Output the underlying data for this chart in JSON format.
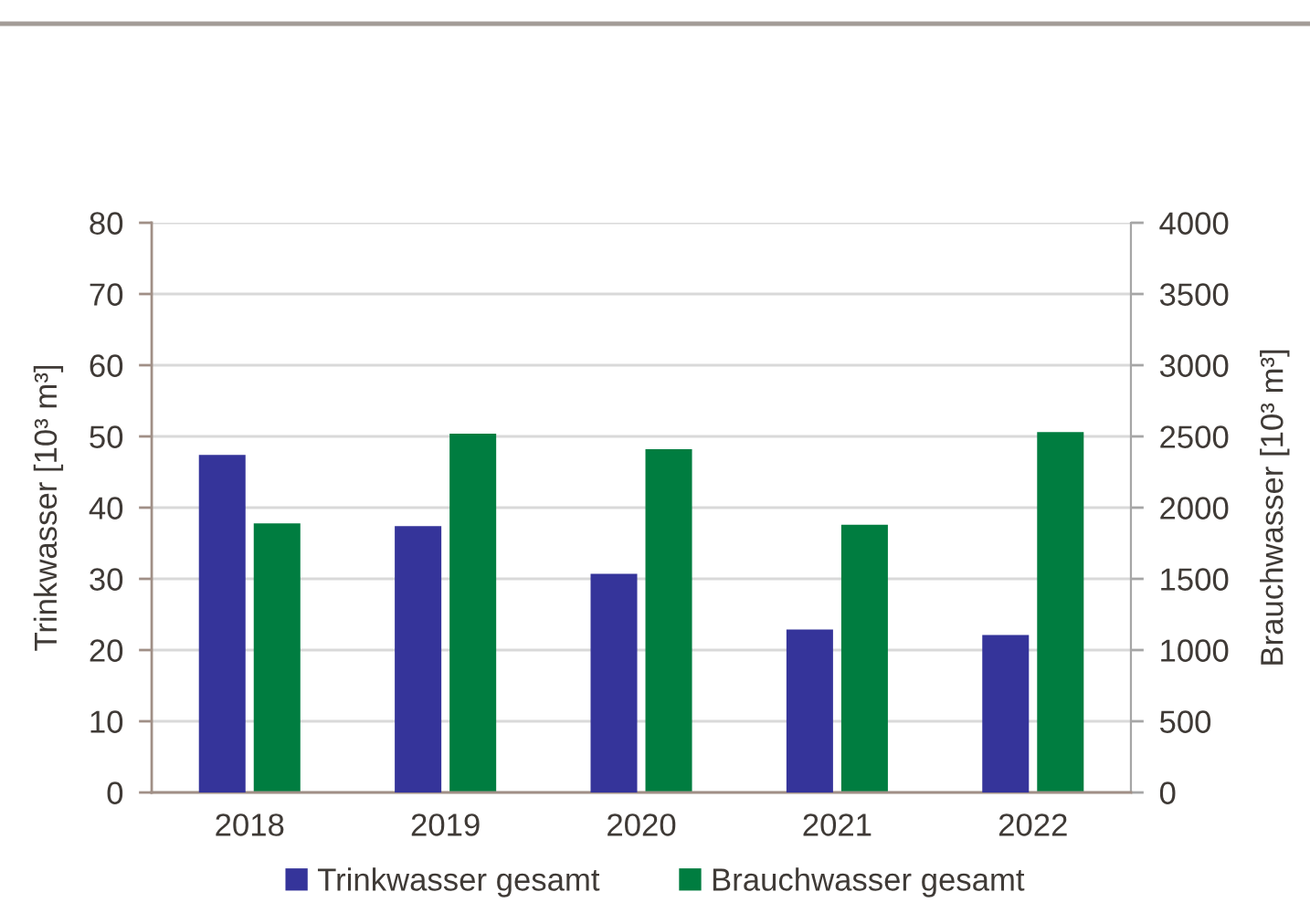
{
  "chart_data": {
    "type": "bar",
    "categories": [
      "2018",
      "2019",
      "2020",
      "2021",
      "2022"
    ],
    "series": [
      {
        "name": "Trinkwasser gesamt",
        "color": "#35349a",
        "values": [
          47.4,
          37.4,
          30.7,
          22.9,
          22.1
        ]
      },
      {
        "name": "Brauchwasser gesamt",
        "color": "#007d40",
        "axis": "y2",
        "values": [
          1890,
          2520,
          2410,
          1880,
          2530
        ]
      }
    ],
    "ylabel": "Trinkwasser [10³ m³]",
    "y2label": "Brauchwasser [10³ m³]",
    "ylim": [
      0,
      80
    ],
    "yticks": [
      0,
      10,
      20,
      30,
      40,
      50,
      60,
      70,
      80
    ],
    "y2lim": [
      0,
      4000
    ],
    "y2ticks": [
      0,
      500,
      1000,
      1500,
      2000,
      2500,
      3000,
      3500,
      4000
    ],
    "grid": "y",
    "legend": "bottom"
  }
}
